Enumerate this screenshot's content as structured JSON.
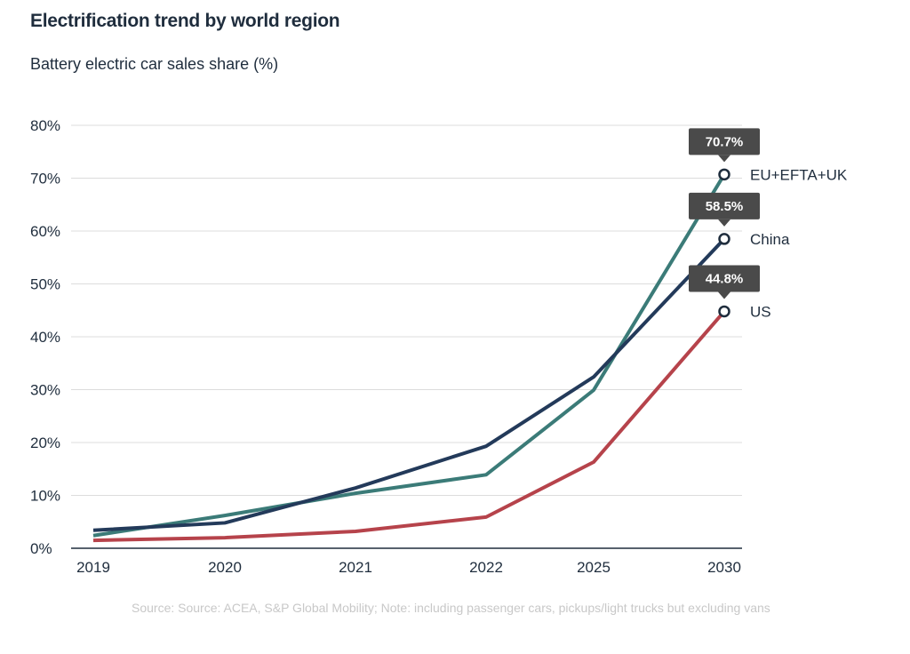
{
  "chart_data": {
    "type": "line",
    "title": "Electrification trend by world region",
    "ylabel": "Battery electric car sales share (%)",
    "xlabel": "",
    "categories": [
      "2019",
      "2020",
      "2021",
      "2022",
      "2025",
      "2030"
    ],
    "ylim": [
      0,
      80
    ],
    "yticks": [
      "0%",
      "10%",
      "20%",
      "30%",
      "40%",
      "50%",
      "60%",
      "70%",
      "80%"
    ],
    "grid": true,
    "legend": "direct-labels-right",
    "series": [
      {
        "name": "EU+EFTA+UK",
        "color": "#3b7b78",
        "values": [
          2.4,
          6.2,
          10.4,
          13.9,
          29.9,
          70.7
        ],
        "end_label": "70.7%"
      },
      {
        "name": "China",
        "color": "#233a5a",
        "values": [
          3.4,
          4.8,
          11.4,
          19.3,
          32.4,
          58.5
        ],
        "end_label": "58.5%"
      },
      {
        "name": "US",
        "color": "#b6434b",
        "values": [
          1.5,
          2.0,
          3.2,
          5.9,
          16.3,
          44.8
        ],
        "end_label": "44.8%"
      }
    ],
    "source": "Source:  Source: ACEA, S&P Global Mobility; Note: including passenger cars, pickups/light trucks but excluding vans"
  }
}
